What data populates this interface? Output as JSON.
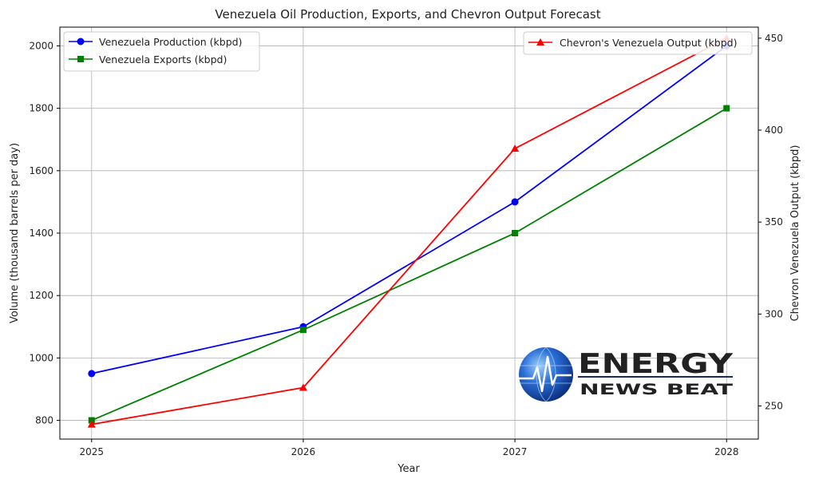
{
  "chart_data": {
    "type": "line",
    "title": "Venezuela Oil Production, Exports, and Chevron Output Forecast",
    "xlabel": "Year",
    "ylabel": "Volume (thousand barrels per day)",
    "y2label": "Chevron Venezuela Output (kbpd)",
    "x": [
      "2025",
      "2026",
      "2027",
      "2028"
    ],
    "xlim": [
      2024.85,
      2028.15
    ],
    "ylim": [
      740,
      2060
    ],
    "y2lim": [
      232,
      456
    ],
    "yticks": [
      800,
      1000,
      1200,
      1400,
      1600,
      1800,
      2000
    ],
    "y2ticks": [
      250,
      300,
      350,
      400,
      450
    ],
    "grid": true,
    "series": [
      {
        "name": "Venezuela Production (kbpd)",
        "axis": "left",
        "color": "#0000ff",
        "marker": "circle",
        "values": [
          950,
          1100,
          1500,
          2000
        ]
      },
      {
        "name": "Venezuela Exports (kbpd)",
        "axis": "left",
        "color": "#008000",
        "marker": "square",
        "values": [
          800,
          1090,
          1400,
          1800
        ]
      },
      {
        "name": "Chevron's Venezuela Output (kbpd)",
        "axis": "right",
        "color": "#ff0000",
        "marker": "triangle",
        "values": [
          240,
          260,
          390,
          450
        ]
      }
    ],
    "legend_left_placement": "top-left",
    "legend_right_placement": "top-right"
  },
  "watermark": {
    "line1": "ENERGY",
    "line2": "NEWS BEAT",
    "color": "#1a2a6e"
  }
}
